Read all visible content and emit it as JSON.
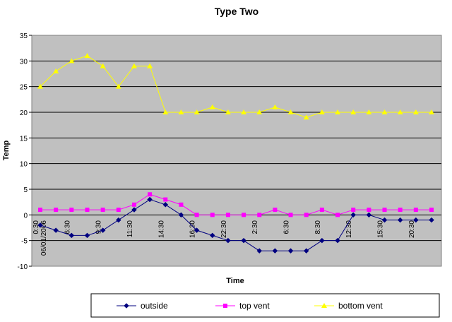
{
  "chart_data": {
    "type": "line",
    "title": "Type Two",
    "xlabel": "Time",
    "ylabel": "Temp",
    "ylim": [
      -10,
      35
    ],
    "yticks": [
      -10,
      -5,
      0,
      5,
      10,
      15,
      20,
      25,
      30,
      35
    ],
    "grid": "horizontal",
    "legend_position": "bottom",
    "x_tick_labels": [
      "0:30\n06/01/2006",
      "6:30",
      "9:30",
      "11:30",
      "14:30",
      "16:30",
      "22:30",
      "2:30",
      "6:30",
      "8:30",
      "12:30",
      "15:30",
      "20:30"
    ],
    "x_tick_indices": [
      0,
      2,
      4,
      6,
      8,
      10,
      12,
      14,
      16,
      18,
      20,
      22,
      24
    ],
    "series": [
      {
        "name": "outside",
        "color": "#000080",
        "marker": "diamond",
        "values": [
          -2,
          -3,
          -4,
          -4,
          -3,
          -1,
          1,
          3,
          2,
          0,
          -3,
          -4,
          -5,
          -5,
          -7,
          -7,
          -7,
          -7,
          -5,
          -5,
          0,
          0,
          -1,
          -1,
          -1,
          -1
        ]
      },
      {
        "name": "top vent",
        "color": "#ff00ff",
        "marker": "square",
        "values": [
          1,
          1,
          1,
          1,
          1,
          1,
          2,
          4,
          3,
          2,
          0,
          0,
          0,
          0,
          0,
          1,
          0,
          0,
          1,
          0,
          1,
          1,
          1,
          1,
          1,
          1
        ]
      },
      {
        "name": "bottom vent",
        "color": "#ffff00",
        "marker": "triangle",
        "values": [
          25,
          28,
          30,
          31,
          29,
          25,
          29,
          29,
          20,
          20,
          20,
          21,
          20,
          20,
          20,
          21,
          20,
          19,
          20,
          20,
          20,
          20,
          20,
          20,
          20,
          20
        ]
      }
    ]
  }
}
